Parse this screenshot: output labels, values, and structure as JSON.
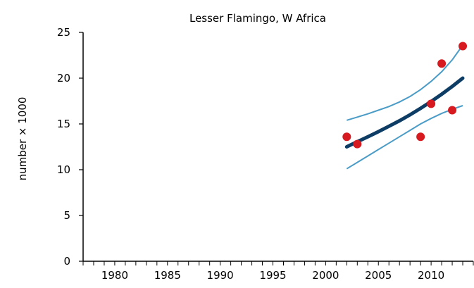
{
  "chart_data": {
    "type": "scatter",
    "title": "Lesser Flamingo, W Africa",
    "xlabel": "",
    "ylabel": "number × 1000",
    "xlim": [
      1977,
      2014
    ],
    "ylim": [
      0,
      25
    ],
    "x_ticks": [
      1980,
      1985,
      1990,
      1995,
      2000,
      2005,
      2010
    ],
    "y_ticks": [
      0,
      5,
      10,
      15,
      20,
      25
    ],
    "grid": false,
    "colors": {
      "points": "#d71920",
      "trend": "#0d3c64",
      "confidence": "#4a9cc7",
      "axis": "#000000"
    },
    "series": [
      {
        "type": "scatter",
        "x": [
          2002,
          2003,
          2009,
          2010,
          2011,
          2012,
          2013
        ],
        "y": [
          13.6,
          12.8,
          13.6,
          17.2,
          21.6,
          16.5,
          23.5
        ]
      },
      {
        "type": "line",
        "x": [
          2002,
          2003,
          2004,
          2005,
          2006,
          2007,
          2008,
          2009,
          2010,
          2011,
          2012,
          2013
        ],
        "y": [
          12.5,
          13.05,
          13.6,
          14.15,
          14.75,
          15.35,
          16.0,
          16.7,
          17.45,
          18.25,
          19.1,
          20.0
        ]
      },
      {
        "type": "line",
        "x": [
          2002,
          2003,
          2004,
          2005,
          2006,
          2007,
          2008,
          2009,
          2010,
          2011,
          2012,
          2013
        ],
        "y": [
          15.4,
          15.75,
          16.1,
          16.5,
          16.9,
          17.4,
          18.0,
          18.75,
          19.65,
          20.7,
          22.0,
          23.6
        ]
      },
      {
        "type": "line",
        "x": [
          2002,
          2003,
          2004,
          2005,
          2006,
          2007,
          2008,
          2009,
          2010,
          2011,
          2012,
          2013
        ],
        "y": [
          10.1,
          10.8,
          11.5,
          12.2,
          12.9,
          13.6,
          14.3,
          15.0,
          15.6,
          16.15,
          16.6,
          17.0
        ]
      }
    ]
  }
}
